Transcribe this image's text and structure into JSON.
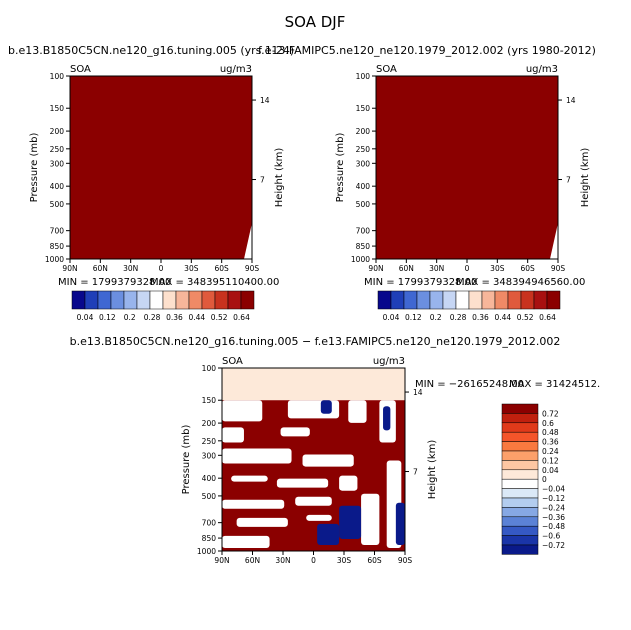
{
  "figure": {
    "title": "SOA DJF",
    "top_subtitle_left": "b.e13.B1850C5CN.ne120_g16.tuning.005 (yrs 1-24)",
    "top_subtitle_right": "f.e13.FAMIPC5.ne120_ne120.1979_2012.002 (yrs 1980-2012)",
    "diff_subtitle": "b.e13.B1850C5CN.ne120_g16.tuning.005 − f.e13.FAMIPC5.ne120_ne120.1979_2012.002",
    "variable": "SOA",
    "units": "ug/m3",
    "left_y_label": "Pressure  (mb)",
    "right_y_label": "Height  (km)"
  },
  "chart_data": [
    {
      "type": "heatmap",
      "name": "panel-model",
      "min_label": "MIN = 1799379328.00",
      "max_label": "MAX = 348395110400.00",
      "fill_color": "#8b0000",
      "x_ticks": [
        "90N",
        "60N",
        "30N",
        "0",
        "30S",
        "60S",
        "90S"
      ],
      "y_ticks": [
        "100",
        "150",
        "200",
        "250",
        "300",
        "400",
        "500",
        "700",
        "850",
        "1000"
      ],
      "y_tick_values": [
        100,
        150,
        200,
        250,
        300,
        400,
        500,
        700,
        850,
        1000
      ],
      "height_ticks": [
        "14",
        "7"
      ],
      "height_tick_values": [
        14,
        7
      ],
      "colorbar_labels": [
        "0.04",
        "0.12",
        "0.2",
        "0.28",
        "0.36",
        "0.44",
        "0.52",
        "0.64"
      ],
      "colorbar_colors": [
        "#08088c",
        "#1f3fb8",
        "#3f67d2",
        "#6b8fe0",
        "#98b4ec",
        "#c6d6f4",
        "#ffffff",
        "#fde0cd",
        "#f7b69a",
        "#ef8a66",
        "#e05a3c",
        "#c8321e",
        "#a81010",
        "#8b0000"
      ]
    },
    {
      "type": "heatmap",
      "name": "panel-obs",
      "min_label": "MIN = 1799379328.00",
      "max_label": "MAX = 348394946560.00",
      "fill_color": "#8b0000",
      "x_ticks": [
        "90N",
        "60N",
        "30N",
        "0",
        "30S",
        "60S",
        "90S"
      ],
      "y_ticks": [
        "100",
        "150",
        "200",
        "250",
        "300",
        "400",
        "500",
        "700",
        "850",
        "1000"
      ],
      "y_tick_values": [
        100,
        150,
        200,
        250,
        300,
        400,
        500,
        700,
        850,
        1000
      ],
      "height_ticks": [
        "14",
        "7"
      ],
      "height_tick_values": [
        14,
        7
      ],
      "colorbar_labels": [
        "0.04",
        "0.12",
        "0.2",
        "0.28",
        "0.36",
        "0.44",
        "0.52",
        "0.64"
      ],
      "colorbar_colors": [
        "#08088c",
        "#1f3fb8",
        "#3f67d2",
        "#6b8fe0",
        "#98b4ec",
        "#c6d6f4",
        "#ffffff",
        "#fde0cd",
        "#f7b69a",
        "#ef8a66",
        "#e05a3c",
        "#c8321e",
        "#a81010",
        "#8b0000"
      ]
    },
    {
      "type": "heatmap",
      "name": "panel-diff",
      "min_label": "MIN = −26165248.00",
      "max_label": "MAX = 31424512.",
      "x_ticks": [
        "90N",
        "60N",
        "30N",
        "0",
        "30S",
        "60S",
        "90S"
      ],
      "y_ticks": [
        "100",
        "150",
        "200",
        "250",
        "300",
        "400",
        "500",
        "700",
        "850",
        "1000"
      ],
      "y_tick_values": [
        100,
        150,
        200,
        250,
        300,
        400,
        500,
        700,
        850,
        1000
      ],
      "height_ticks": [
        "14",
        "7"
      ],
      "height_tick_values": [
        14,
        7
      ],
      "colorbar_labels": [
        "0.72",
        "0.6",
        "0.48",
        "0.36",
        "0.24",
        "0.12",
        "0.04",
        "0",
        "−0.04",
        "−0.12",
        "−0.24",
        "−0.36",
        "−0.48",
        "−0.6",
        "−0.72"
      ],
      "colorbar_colors": [
        "#8b0000",
        "#c0200e",
        "#e03a1a",
        "#f4552a",
        "#f9793f",
        "#fca06a",
        "#fdc7a3",
        "#fde9d9",
        "#ffffff",
        "#dbe9f7",
        "#b3cdef",
        "#86a8e4",
        "#5b82d6",
        "#3559c4",
        "#1a35a8",
        "#0a1a8a"
      ],
      "top_band_color": "#fde9d9",
      "positive_color": "#8b0000",
      "negative_color": "#0a1a8a"
    }
  ]
}
